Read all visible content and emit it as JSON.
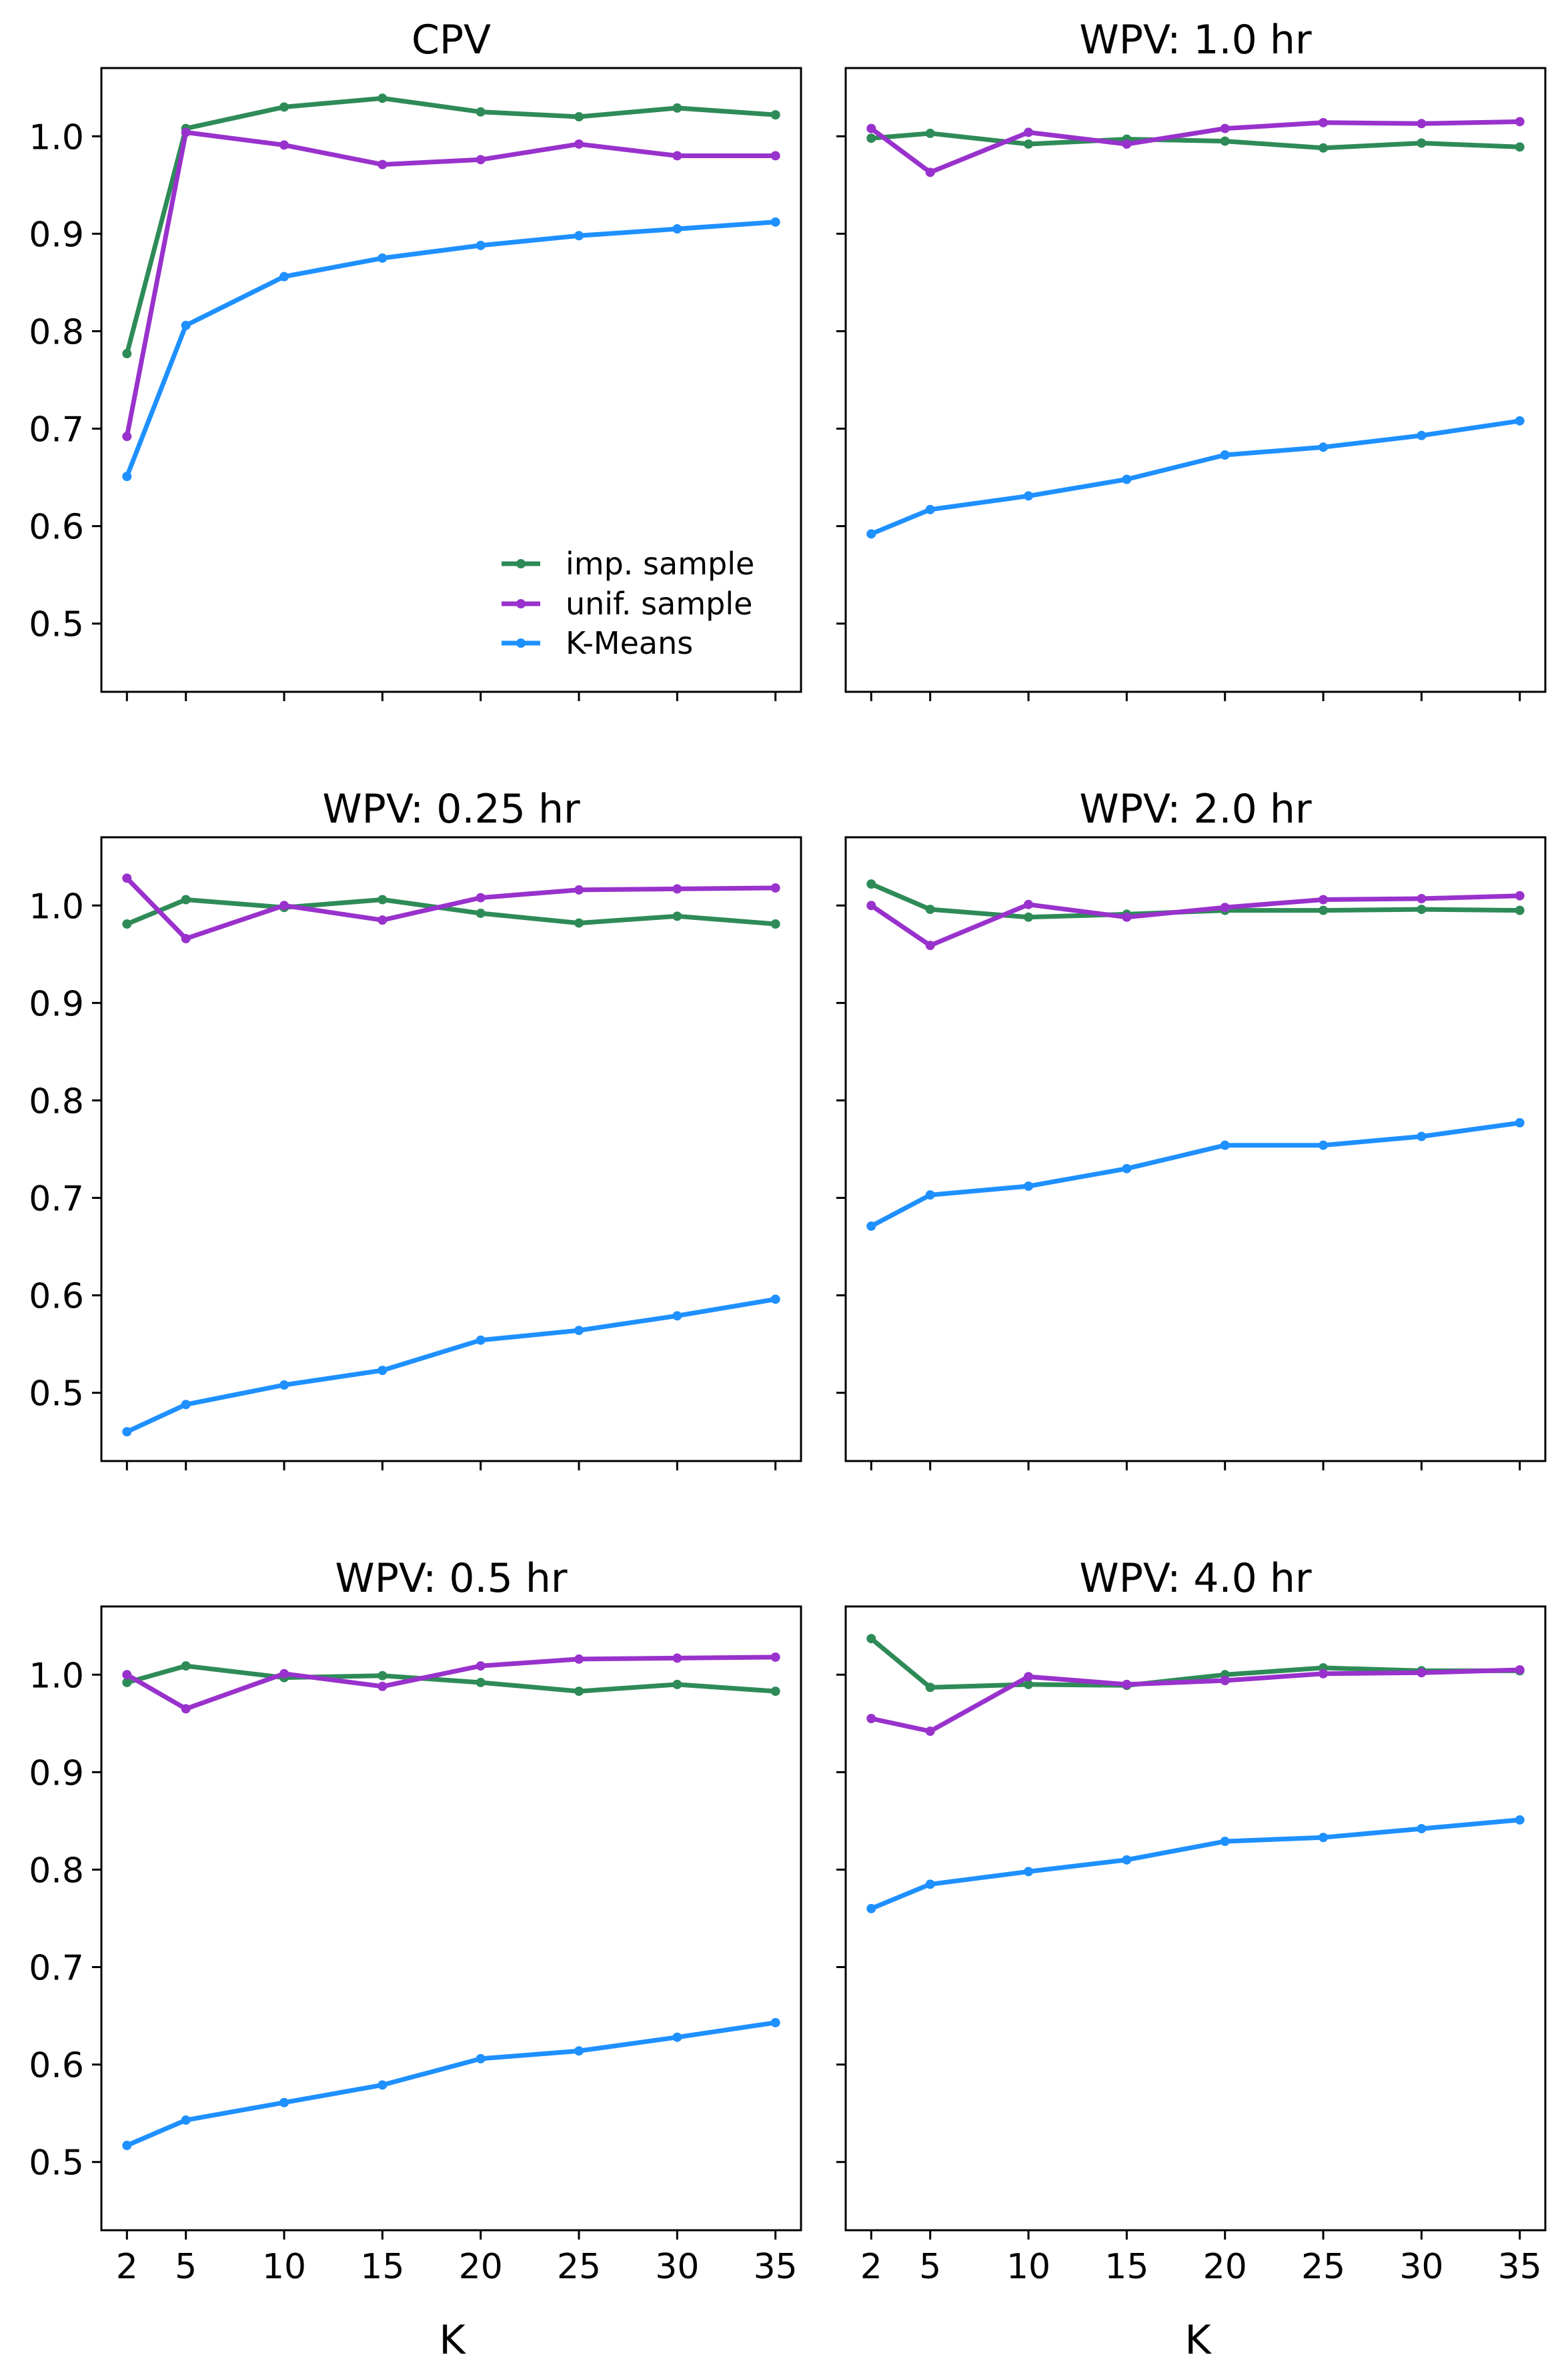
{
  "figure": {
    "xlabel": "K",
    "legend": {
      "location": "lower-right of first panel",
      "entries": [
        "imp. sample",
        "unif. sample",
        "K-Means"
      ]
    },
    "colors": {
      "imp. sample": "#2e8b57",
      "unif. sample": "#9932cc",
      "K-Means": "#1e90ff"
    }
  },
  "chart_data": [
    {
      "type": "line",
      "title": "CPV",
      "x": [
        2,
        5,
        10,
        15,
        20,
        25,
        30,
        35
      ],
      "xticks": [
        2,
        5,
        10,
        15,
        20,
        25,
        30,
        35
      ],
      "yticks": [
        0.5,
        0.6,
        0.7,
        0.8,
        0.9,
        1.0
      ],
      "ylim": [
        0.43,
        1.07
      ],
      "xlim": [
        0.7,
        36.3
      ],
      "grid": false,
      "series": [
        {
          "name": "imp. sample",
          "values": [
            0.777,
            1.008,
            1.03,
            1.039,
            1.025,
            1.02,
            1.029,
            1.022
          ]
        },
        {
          "name": "unif. sample",
          "values": [
            0.692,
            1.004,
            0.991,
            0.971,
            0.976,
            0.992,
            0.98,
            0.98
          ]
        },
        {
          "name": "K-Means",
          "values": [
            0.651,
            0.806,
            0.856,
            0.875,
            0.888,
            0.898,
            0.905,
            0.912
          ]
        }
      ]
    },
    {
      "type": "line",
      "title": "WPV: 1.0 hr",
      "x": [
        2,
        5,
        10,
        15,
        20,
        25,
        30,
        35
      ],
      "xticks": [
        2,
        5,
        10,
        15,
        20,
        25,
        30,
        35
      ],
      "yticks": [
        0.5,
        0.6,
        0.7,
        0.8,
        0.9,
        1.0
      ],
      "ylim": [
        0.43,
        1.07
      ],
      "xlim": [
        0.7,
        36.3
      ],
      "grid": false,
      "series": [
        {
          "name": "imp. sample",
          "values": [
            0.998,
            1.003,
            0.992,
            0.997,
            0.995,
            0.988,
            0.993,
            0.989
          ]
        },
        {
          "name": "unif. sample",
          "values": [
            1.008,
            0.963,
            1.004,
            0.992,
            1.008,
            1.014,
            1.013,
            1.015
          ]
        },
        {
          "name": "K-Means",
          "values": [
            0.592,
            0.617,
            0.631,
            0.648,
            0.673,
            0.681,
            0.693,
            0.708
          ]
        }
      ]
    },
    {
      "type": "line",
      "title": "WPV: 0.25 hr",
      "x": [
        2,
        5,
        10,
        15,
        20,
        25,
        30,
        35
      ],
      "xticks": [
        2,
        5,
        10,
        15,
        20,
        25,
        30,
        35
      ],
      "yticks": [
        0.5,
        0.6,
        0.7,
        0.8,
        0.9,
        1.0
      ],
      "ylim": [
        0.43,
        1.07
      ],
      "xlim": [
        0.7,
        36.3
      ],
      "grid": false,
      "series": [
        {
          "name": "imp. sample",
          "values": [
            0.981,
            1.006,
            0.998,
            1.006,
            0.992,
            0.982,
            0.989,
            0.981
          ]
        },
        {
          "name": "unif. sample",
          "values": [
            1.028,
            0.966,
            1.0,
            0.985,
            1.008,
            1.016,
            1.017,
            1.018
          ]
        },
        {
          "name": "K-Means",
          "values": [
            0.46,
            0.488,
            0.508,
            0.523,
            0.554,
            0.564,
            0.579,
            0.596
          ]
        }
      ]
    },
    {
      "type": "line",
      "title": "WPV: 2.0 hr",
      "x": [
        2,
        5,
        10,
        15,
        20,
        25,
        30,
        35
      ],
      "xticks": [
        2,
        5,
        10,
        15,
        20,
        25,
        30,
        35
      ],
      "yticks": [
        0.5,
        0.6,
        0.7,
        0.8,
        0.9,
        1.0
      ],
      "ylim": [
        0.43,
        1.07
      ],
      "xlim": [
        0.7,
        36.3
      ],
      "grid": false,
      "series": [
        {
          "name": "imp. sample",
          "values": [
            1.022,
            0.996,
            0.988,
            0.991,
            0.995,
            0.995,
            0.996,
            0.995
          ]
        },
        {
          "name": "unif. sample",
          "values": [
            1.0,
            0.959,
            1.001,
            0.988,
            0.998,
            1.006,
            1.007,
            1.01
          ]
        },
        {
          "name": "K-Means",
          "values": [
            0.671,
            0.703,
            0.712,
            0.73,
            0.754,
            0.754,
            0.763,
            0.777
          ]
        }
      ]
    },
    {
      "type": "line",
      "title": "WPV: 0.5 hr",
      "x": [
        2,
        5,
        10,
        15,
        20,
        25,
        30,
        35
      ],
      "xticks": [
        2,
        5,
        10,
        15,
        20,
        25,
        30,
        35
      ],
      "yticks": [
        0.5,
        0.6,
        0.7,
        0.8,
        0.9,
        1.0
      ],
      "ylim": [
        0.43,
        1.07
      ],
      "xlim": [
        0.7,
        36.3
      ],
      "grid": false,
      "series": [
        {
          "name": "imp. sample",
          "values": [
            0.992,
            1.009,
            0.997,
            0.999,
            0.992,
            0.983,
            0.99,
            0.983
          ]
        },
        {
          "name": "unif. sample",
          "values": [
            1.0,
            0.965,
            1.001,
            0.988,
            1.009,
            1.016,
            1.017,
            1.018
          ]
        },
        {
          "name": "K-Means",
          "values": [
            0.517,
            0.543,
            0.561,
            0.579,
            0.606,
            0.614,
            0.628,
            0.643
          ]
        }
      ]
    },
    {
      "type": "line",
      "title": "WPV: 4.0 hr",
      "x": [
        2,
        5,
        10,
        15,
        20,
        25,
        30,
        35
      ],
      "xticks": [
        2,
        5,
        10,
        15,
        20,
        25,
        30,
        35
      ],
      "yticks": [
        0.5,
        0.6,
        0.7,
        0.8,
        0.9,
        1.0
      ],
      "ylim": [
        0.43,
        1.07
      ],
      "xlim": [
        0.7,
        36.3
      ],
      "grid": false,
      "series": [
        {
          "name": "imp. sample",
          "values": [
            1.037,
            0.987,
            0.99,
            0.989,
            1.0,
            1.007,
            1.004,
            1.004
          ]
        },
        {
          "name": "unif. sample",
          "values": [
            0.955,
            0.942,
            0.998,
            0.99,
            0.994,
            1.001,
            1.002,
            1.005
          ]
        },
        {
          "name": "K-Means",
          "values": [
            0.76,
            0.785,
            0.798,
            0.81,
            0.829,
            0.833,
            0.842,
            0.851
          ]
        }
      ]
    }
  ]
}
